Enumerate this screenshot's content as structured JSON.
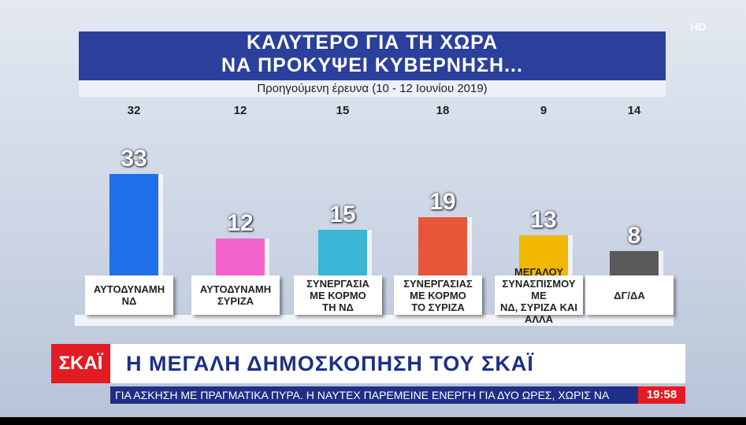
{
  "chart_data": {
    "type": "bar",
    "title": "ΚΑΛΥΤΕΡΟ ΓΙΑ ΤΗ ΧΩΡΑ\nΝΑ ΠΡΟΚΥΨΕΙ ΚΥΒΕΡΝΗΣΗ...",
    "subtitle": "Προηγούμενη έρευνα (10 - 12 Ιουνίου 2019)",
    "categories": [
      "ΑΥΤΟΔΥΝΑΜΗ\nΝΔ",
      "ΑΥΤΟΔΥΝΑΜΗ\nΣΥΡΙΖΑ",
      "ΣΥΝΕΡΓΑΣΙΑ\nΜΕ ΚΟΡΜΟ\nΤΗ ΝΔ",
      "ΣΥΝΕΡΓΑΣΙΑΣ\nΜΕ ΚΟΡΜΟ\nΤΟ ΣΥΡΙΖΑ",
      "ΜΕΓΑΛΟΥ\nΣΥΝΑΣΠΙΣΜΟΥ ΜΕ\nΝΔ, ΣΥΡΙΖΑ ΚΑΙ ΑΛΛΑ",
      "ΔΓ/ΔΑ"
    ],
    "values": [
      33,
      12,
      15,
      19,
      13,
      8
    ],
    "colors": [
      "#1f6fe8",
      "#f264cc",
      "#3cb6d6",
      "#e8563a",
      "#f2b705",
      "#5a5a5a"
    ],
    "previous_values": [
      32,
      12,
      15,
      18,
      9,
      14
    ]
  },
  "broadcast": {
    "logo": "ΣΚΑΪ",
    "headline": "Η ΜΕΓΑΛΗ ΔΗΜΟΣΚΟΠΗΣΗ ΤΟΥ ΣΚΑΪ",
    "ticker": "ΓΙΑ ΑΣΚΗΣΗ ΜΕ ΠΡΑΓΜΑΤΙΚΑ ΠΥΡΑ. Η ΝΑΥΤΕΧ ΠΑΡΕΜΕΙΝΕ ΕΝΕΡΓΗ ΓΙΑ ΔΥΟ ΩΡΕΣ, ΧΩΡΙΣ ΝΑ",
    "time": "19:58",
    "hd": "HD"
  }
}
